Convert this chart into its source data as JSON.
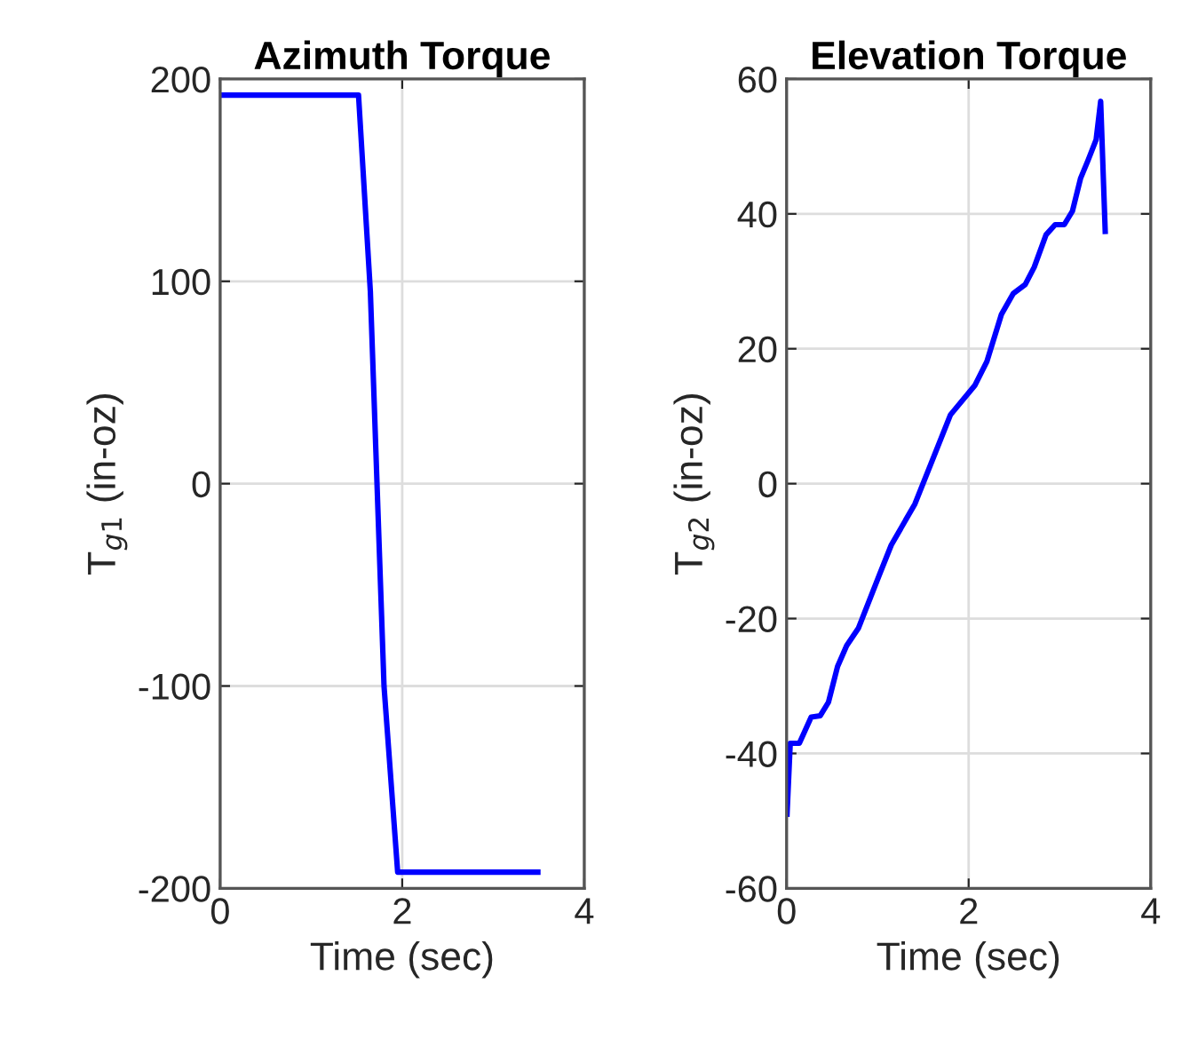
{
  "chart_data": [
    {
      "type": "line",
      "title": "Azimuth Torque",
      "xlabel": "Time (sec)",
      "ylabel": "T$_{g1}$ (in-oz)",
      "xlim": [
        0,
        4
      ],
      "xticks": [
        0,
        2,
        4
      ],
      "ylim": [
        -200,
        200
      ],
      "yticks": [
        -200,
        -100,
        0,
        100,
        200
      ],
      "grid": true,
      "x": [
        0,
        1.52,
        1.65,
        1.8,
        1.95,
        3.49
      ],
      "series": [
        {
          "color": "#0000ff",
          "values": [
            192,
            192,
            95,
            -100,
            -192,
            -192
          ]
        }
      ]
    },
    {
      "type": "line",
      "title": "Elevation Torque",
      "xlabel": "Time (sec)",
      "ylabel": "T$_{g2}$ (in-oz)",
      "xlim": [
        0,
        4
      ],
      "xticks": [
        0,
        2,
        4
      ],
      "ylim": [
        -60,
        60
      ],
      "yticks": [
        -60,
        -40,
        -20,
        0,
        20,
        40,
        60
      ],
      "grid": true,
      "x": [
        0.005,
        0.04,
        0.14,
        0.27,
        0.37,
        0.46,
        0.56,
        0.66,
        0.79,
        1.02,
        1.15,
        1.41,
        1.8,
        2.07,
        2.2,
        2.36,
        2.49,
        2.62,
        2.72,
        2.85,
        2.95,
        3.05,
        3.14,
        3.23,
        3.31,
        3.4,
        3.45,
        3.5
      ],
      "series": [
        {
          "color": "#0000ff",
          "values": [
            -49,
            -38.5,
            -38.5,
            -34.6,
            -34.4,
            -32.4,
            -27.1,
            -24,
            -21.4,
            -13.5,
            -9.1,
            -3,
            10.2,
            14.6,
            18.1,
            25.1,
            28.2,
            29.5,
            32.1,
            36.9,
            38.4,
            38.4,
            40.4,
            45.3,
            47.9,
            51,
            56.7,
            37.4
          ]
        }
      ]
    }
  ]
}
